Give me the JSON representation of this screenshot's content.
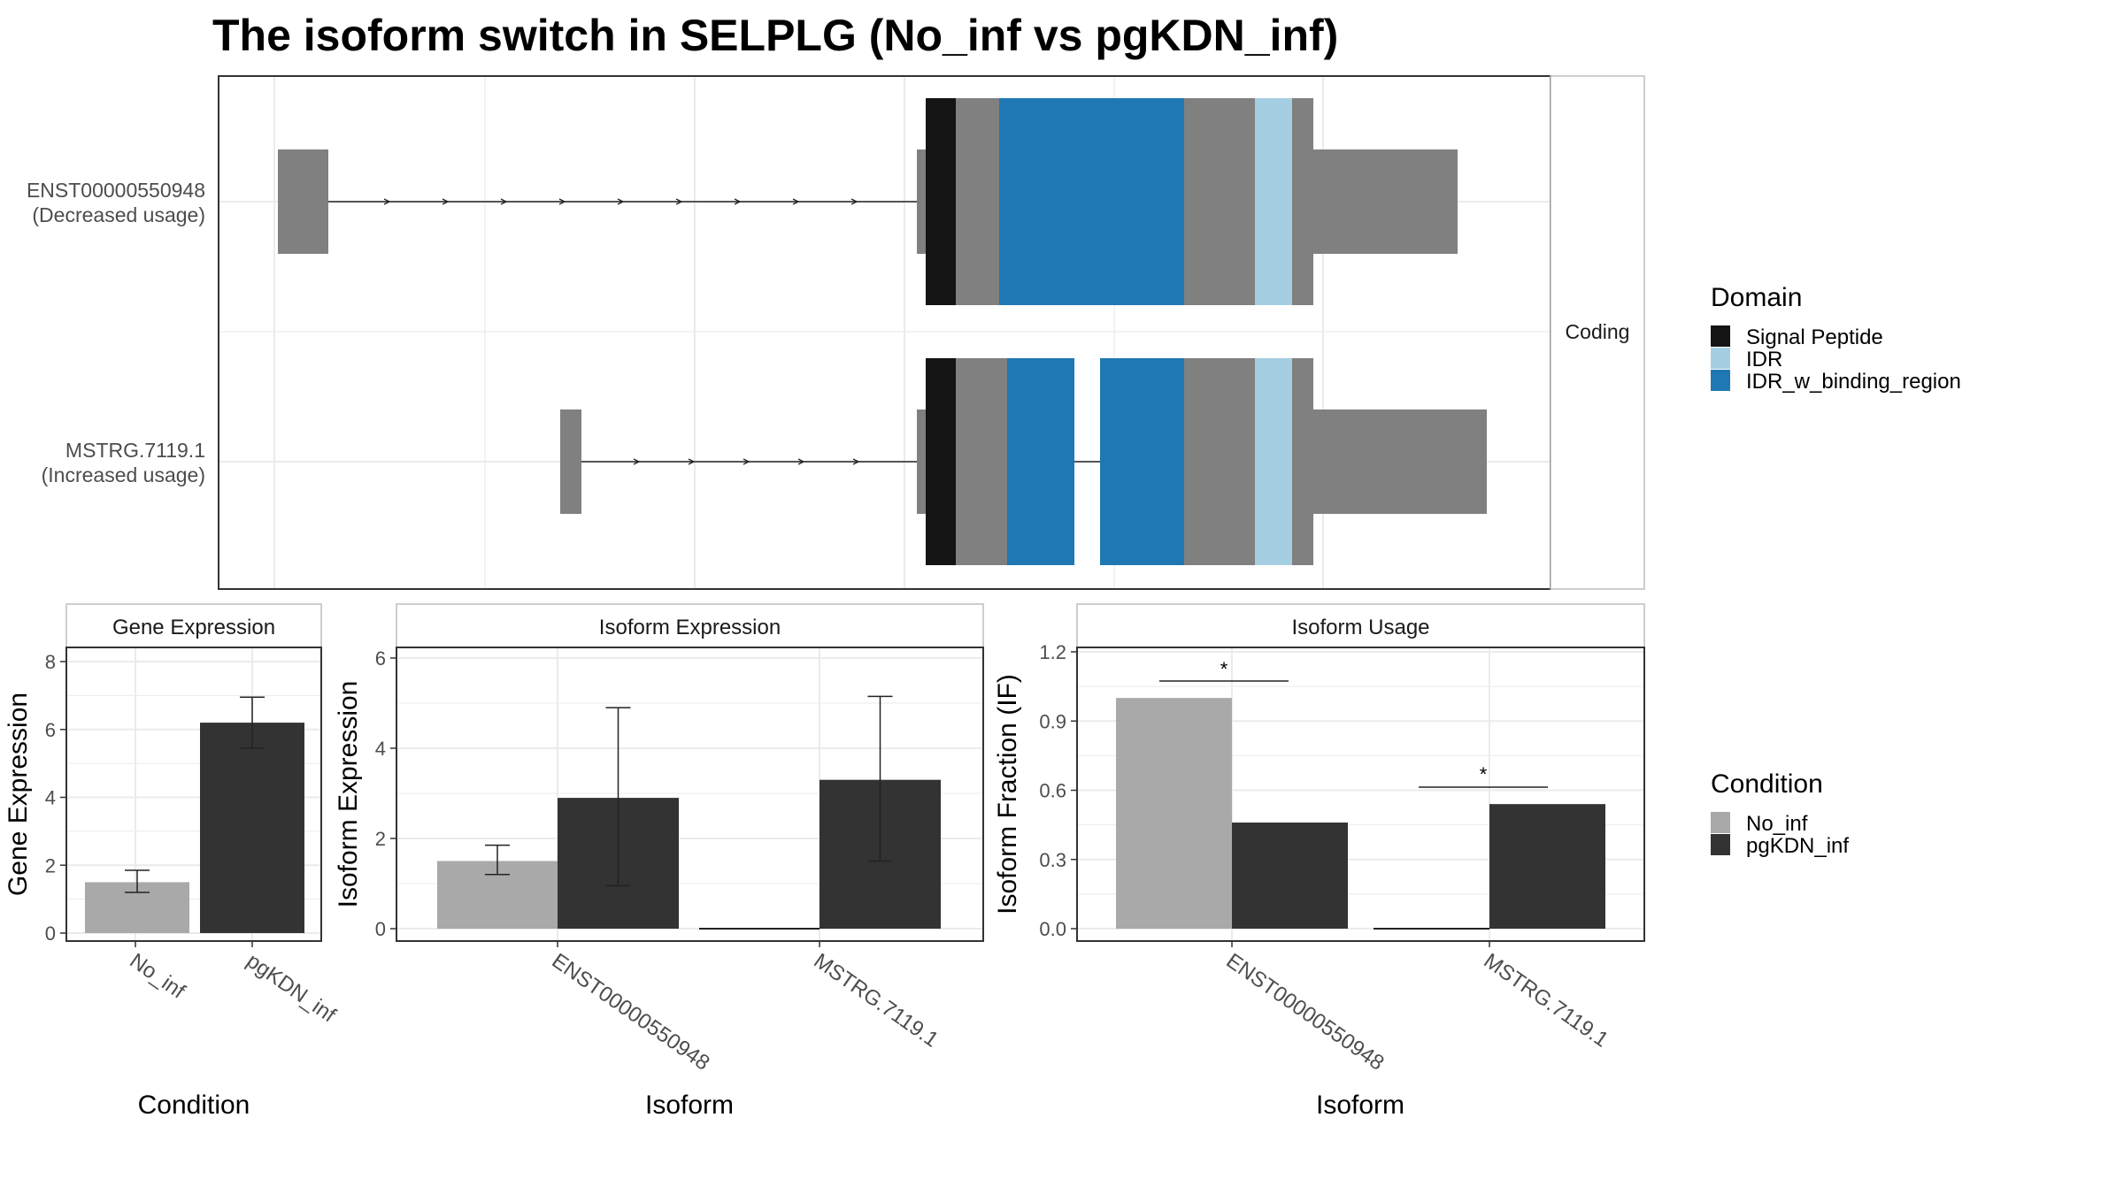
{
  "title": "The isoform switch in SELPLG (No_inf vs pgKDN_inf)",
  "colors": {
    "signal_peptide": "#141414",
    "idr": "#a6cee3",
    "idr_binding": "#1f78b4",
    "exon": "#808080",
    "no_inf": "#a9a9a9",
    "pgkdn_inf": "#333333",
    "grid": "#ebebeb",
    "frame": "#333333"
  },
  "legend_domain": {
    "title": "Domain",
    "items": [
      {
        "label": "Signal Peptide",
        "color": "#141414"
      },
      {
        "label": "IDR",
        "color": "#a6cee3"
      },
      {
        "label": "IDR_w_binding_region",
        "color": "#1f78b4"
      }
    ]
  },
  "legend_condition": {
    "title": "Condition",
    "items": [
      {
        "label": "No_inf",
        "color": "#a9a9a9"
      },
      {
        "label": "pgKDN_inf",
        "color": "#333333"
      }
    ]
  },
  "chart_data": [
    {
      "type": "isoform_structure",
      "strip_label": "Coding",
      "isoforms": [
        {
          "id": "ENST00000550948",
          "label_line1": "ENST00000550948",
          "label_line2": "(Decreased usage)"
        },
        {
          "id": "MSTRG.7119.1",
          "label_line1": "MSTRG.7119.1",
          "label_line2": "(Increased usage)"
        }
      ]
    },
    {
      "type": "bar",
      "panel_title": "Gene Expression",
      "xlabel": "Condition",
      "ylabel": "Gene Expression",
      "ylim": [
        0,
        8
      ],
      "yticks": [
        "0",
        "2",
        "4",
        "6",
        "8"
      ],
      "categories": [
        "No_inf",
        "pgKDN_inf"
      ],
      "values": [
        1.5,
        6.2
      ],
      "errors": [
        [
          1.2,
          1.85
        ],
        [
          5.45,
          6.95
        ]
      ]
    },
    {
      "type": "bar",
      "panel_title": "Isoform Expression",
      "xlabel": "Isoform",
      "ylabel": "Isoform Expression",
      "ylim": [
        0,
        6
      ],
      "yticks": [
        "0",
        "2",
        "4",
        "6"
      ],
      "categories": [
        "ENST00000550948",
        "MSTRG.7119.1"
      ],
      "series": [
        {
          "name": "No_inf",
          "values": [
            1.5,
            0.0
          ],
          "errors": [
            [
              1.2,
              1.85
            ],
            [
              0.0,
              0.0
            ]
          ]
        },
        {
          "name": "pgKDN_inf",
          "values": [
            2.9,
            3.3
          ],
          "errors": [
            [
              0.95,
              4.9
            ],
            [
              1.5,
              5.15
            ]
          ]
        }
      ]
    },
    {
      "type": "bar",
      "panel_title": "Isoform Usage",
      "xlabel": "Isoform",
      "ylabel": "Isoform Fraction (IF)",
      "ylim": [
        0,
        1.2
      ],
      "yticks": [
        "0.0",
        "0.3",
        "0.6",
        "0.9",
        "1.2"
      ],
      "categories": [
        "ENST00000550948",
        "MSTRG.7119.1"
      ],
      "series": [
        {
          "name": "No_inf",
          "values": [
            1.0,
            0.0
          ]
        },
        {
          "name": "pgKDN_inf",
          "values": [
            0.46,
            0.54
          ]
        }
      ],
      "significance": [
        "*",
        "*"
      ]
    }
  ]
}
